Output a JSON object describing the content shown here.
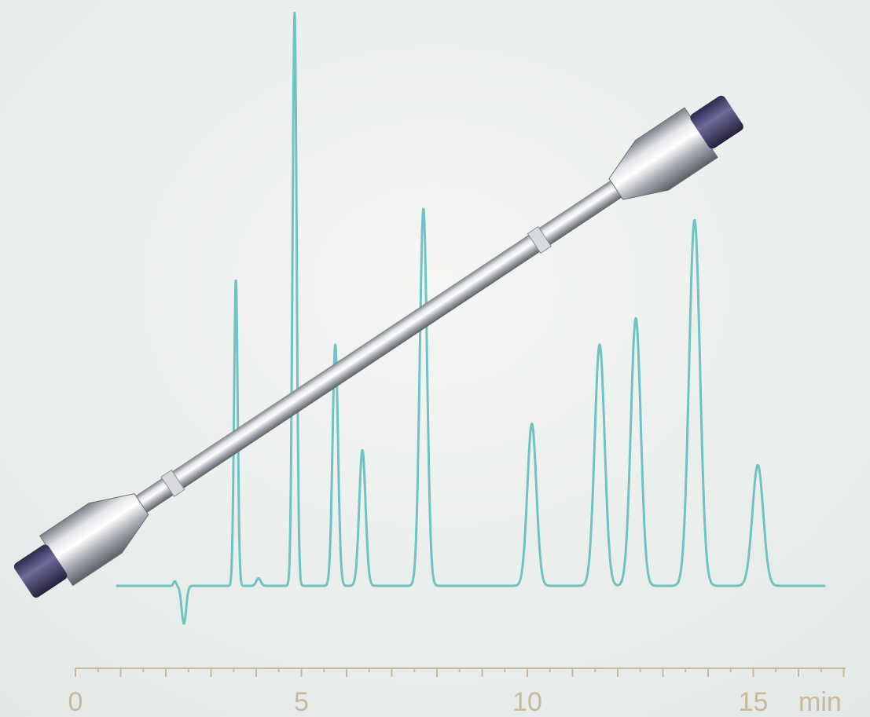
{
  "chart_data": {
    "type": "line",
    "title": "",
    "xlabel": "",
    "ylabel": "",
    "x_unit": "min",
    "xlim": [
      0,
      17
    ],
    "x_ticks": [
      0,
      5,
      10,
      15
    ],
    "x_tick_labels": [
      "0",
      "5",
      "10",
      "15"
    ],
    "minor_tick_step": 0.5,
    "grid": false,
    "legend": "none",
    "series": [
      {
        "color": "#6fc3c2",
        "baseline": 0,
        "dip": {
          "x": 2.4,
          "depth": 0.1
        },
        "peaks": [
          {
            "x": 3.55,
            "height": 0.81,
            "width": 0.04
          },
          {
            "x": 4.05,
            "height": 0.02,
            "width": 0.05
          },
          {
            "x": 4.85,
            "height": 1.52,
            "width": 0.045
          },
          {
            "x": 5.75,
            "height": 0.64,
            "width": 0.06
          },
          {
            "x": 6.35,
            "height": 0.36,
            "width": 0.07
          },
          {
            "x": 7.7,
            "height": 1.0,
            "width": 0.08
          },
          {
            "x": 10.1,
            "height": 0.43,
            "width": 0.1
          },
          {
            "x": 11.6,
            "height": 0.64,
            "width": 0.11
          },
          {
            "x": 12.4,
            "height": 0.71,
            "width": 0.11
          },
          {
            "x": 13.7,
            "height": 0.97,
            "width": 0.12
          },
          {
            "x": 15.1,
            "height": 0.32,
            "width": 0.12
          }
        ]
      }
    ]
  },
  "colors": {
    "trace": "#6fc3c2",
    "axis": "#c9b99a",
    "background": "#eef1ee",
    "cap": "#4a4870"
  },
  "decoration": {
    "object": "hplc-column-image"
  }
}
